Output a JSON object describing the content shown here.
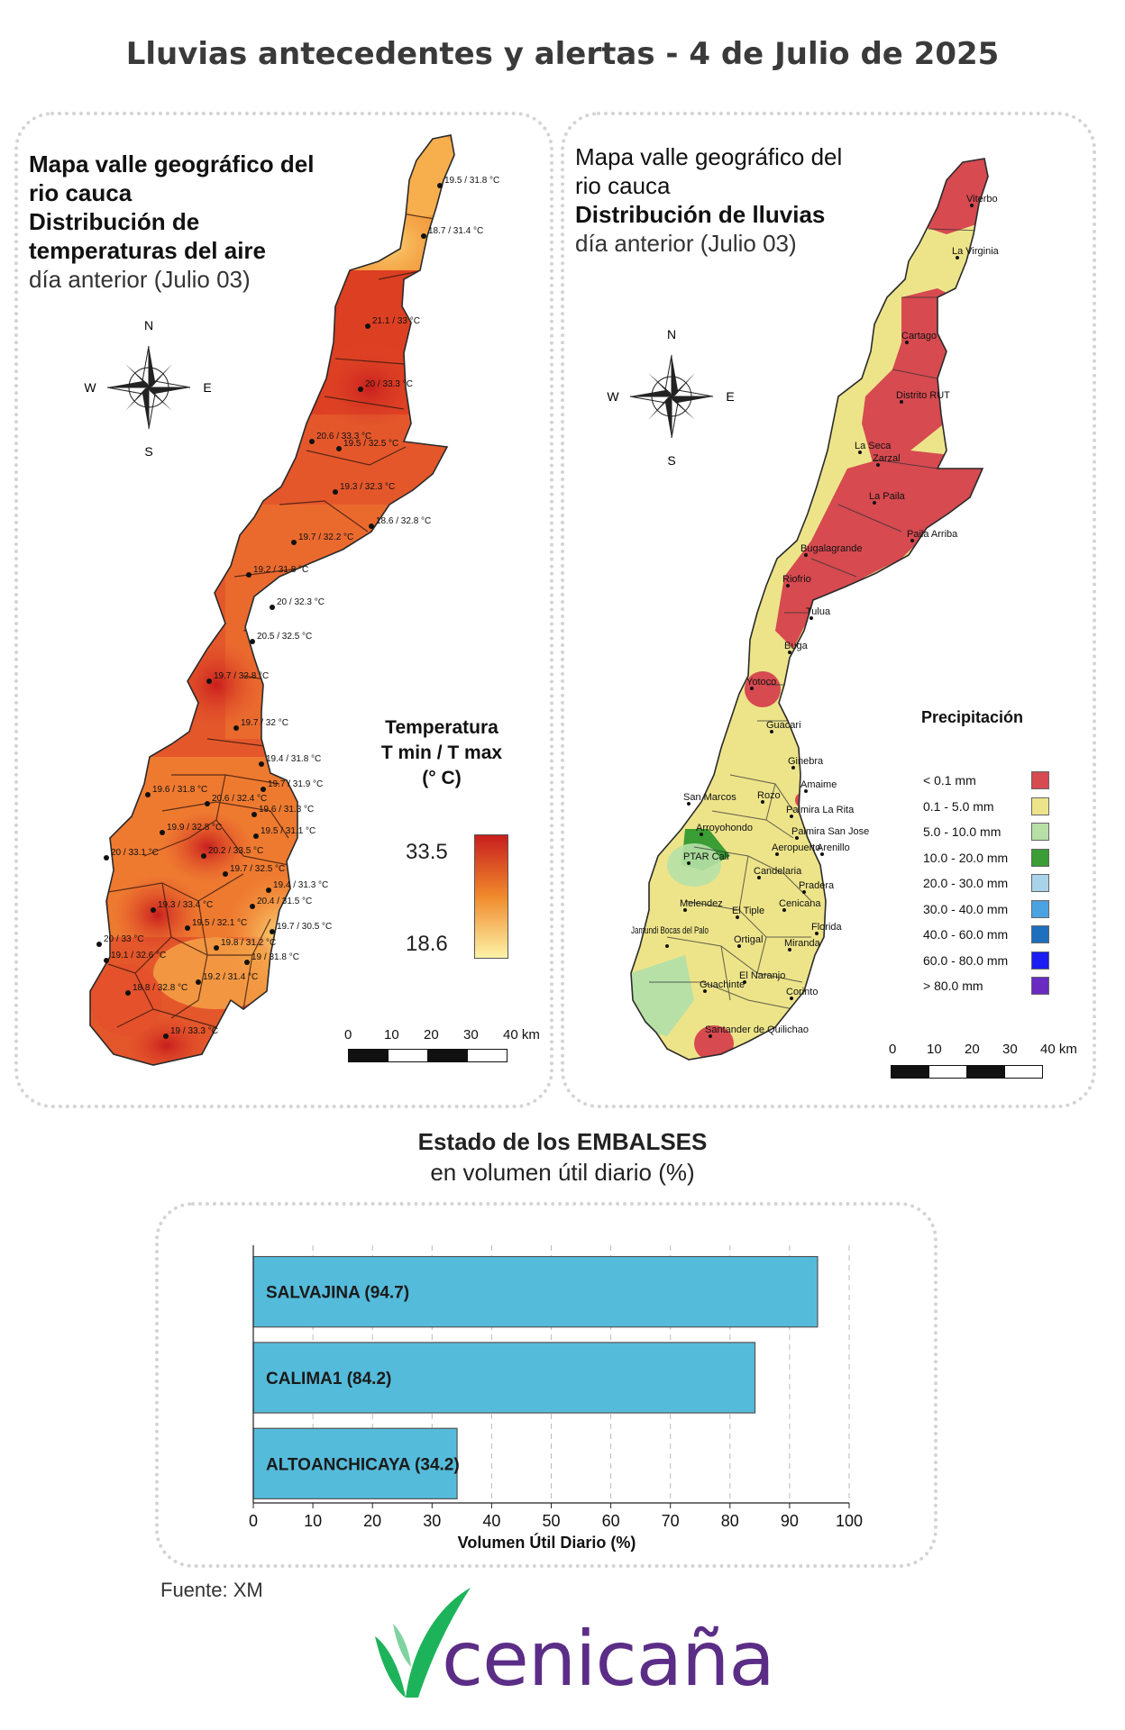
{
  "title": "Lluvias antecedentes y alertas - 4 de Julio de 2025",
  "temp_map": {
    "title_line1": "Mapa valle geográfico del",
    "title_line2": "rio cauca",
    "title_line3": "Distribución de",
    "title_line4": "temperaturas del aire",
    "subtitle": "día anterior (Julio 03)",
    "compass": {
      "n": "N",
      "s": "S",
      "e": "E",
      "w": "W"
    },
    "legend": {
      "title1": "Temperatura",
      "title2": "T min / T max",
      "title3": "(° C)",
      "max": "33.5",
      "min": "18.6",
      "colors": [
        "#c81e1e",
        "#f08a2c",
        "#fdf3a8"
      ]
    },
    "scale": {
      "labels": [
        "0",
        "10",
        "20",
        "30",
        "40 km"
      ]
    },
    "stations": [
      "19.5 / 31.8 °C",
      "18.7 / 31.4 °C",
      "21.1 / 33 °C",
      "20 / 33.3 °C",
      "20.6 / 33.3 °C",
      "19.5 / 32.5 °C",
      "19.3 / 32.3 °C",
      "18.6 / 32.8 °C",
      "19.7 / 32.2 °C",
      "19.2 / 31.8 °C",
      "20 / 32.3 °C",
      "20.5 / 32.5 °C",
      "19.7 / 32.8 °C",
      "19.7 / 32 °C",
      "19.4 / 31.8 °C",
      "19.6 / 31.8 °C",
      "19.7 / 31.9 °C",
      "20.6 / 32.4 °C",
      "19.6 / 31.3 °C",
      "19.9 / 32.8 °C",
      "19.5 / 31.1 °C",
      "20 / 33.1 °C",
      "20.2 / 33.5 °C",
      "19.7 / 32.5 °C",
      "19.4 / 31.3 °C",
      "19.3 / 33.4 °C",
      "20.4 / 31.5 °C",
      "19.5 / 32.1 °C",
      "19.7 / 30.5 °C",
      "20 / 33 °C",
      "19.1 / 32.6 °C",
      "19.8 / 31.2 °C",
      "19 / 31.8 °C",
      "19.2 / 31.4 °C",
      "18.8 / 32.8 °C",
      "19 / 33.3 °C"
    ]
  },
  "rain_map": {
    "title_line1": "Mapa valle geográfico del",
    "title_line2": "rio cauca",
    "title_line3": "Distribución de lluvias",
    "subtitle": "día anterior (Julio 03)",
    "compass": {
      "n": "N",
      "s": "S",
      "e": "E",
      "w": "W"
    },
    "legend": {
      "title": "Precipitación",
      "items": [
        {
          "label": "< 0.1 mm",
          "color": "#d64a50"
        },
        {
          "label": "0.1 - 5.0 mm",
          "color": "#ede48a"
        },
        {
          "label": "5.0 - 10.0 mm",
          "color": "#b6e0a6"
        },
        {
          "label": "10.0 - 20.0 mm",
          "color": "#3a9e35"
        },
        {
          "label": "20.0 - 30.0 mm",
          "color": "#a9d3e9"
        },
        {
          "label": "30.0 - 40.0 mm",
          "color": "#4aa3e0"
        },
        {
          "label": "40.0 - 60.0 mm",
          "color": "#1f6fbf"
        },
        {
          "label": "60.0 - 80.0 mm",
          "color": "#1a1ef0"
        },
        {
          "label": "> 80.0 mm",
          "color": "#6a2bc2"
        }
      ]
    },
    "scale": {
      "labels": [
        "0",
        "10",
        "20",
        "30",
        "40 km"
      ]
    },
    "places": [
      "Viterbo",
      "La Virginia",
      "Cartago",
      "Distrito RUT",
      "La Seca",
      "Zarzal",
      "La Paila",
      "Paila Arriba",
      "Bugalagrande",
      "Riofrio",
      "Tulua",
      "Buga",
      "Yotoco",
      "Guacari",
      "Ginebra",
      "Amaime",
      "San Marcos",
      "Rozo",
      "Palmira La Rita",
      "Arroyohondo",
      "Palmira San Jose",
      "PTAR Cali",
      "Aeropuerto",
      "Arenillo",
      "Candelaria",
      "Pradera",
      "Melendez",
      "Cenicana",
      "El Tiple",
      "Florida",
      "Jamundi Bocas del Palo",
      "Ortigal",
      "Miranda",
      "Guachinte",
      "El Naranjo",
      "Corinto",
      "Santander de Quilichao"
    ]
  },
  "reservoirs": {
    "title": "Estado de los EMBALSES",
    "subtitle": "en volumen útil diario (%)",
    "chart_data": {
      "type": "bar",
      "orientation": "horizontal",
      "categories": [
        "SALVAJINA",
        "CALIMA1",
        "ALTOANCHICAYA"
      ],
      "values": [
        94.7,
        84.2,
        34.2
      ],
      "bar_labels": [
        "SALVAJINA (94.7)",
        "CALIMA1 (84.2)",
        "ALTOANCHICAYA (34.2)"
      ],
      "xlabel": "Volumen Útil Diario (%)",
      "xlim": [
        0,
        100
      ],
      "xticks": [
        "0",
        "10",
        "20",
        "30",
        "40",
        "50",
        "60",
        "70",
        "80",
        "90",
        "100"
      ],
      "bar_color": "#55bbdb",
      "grid": "vertical dashed"
    }
  },
  "source": "Fuente: XM",
  "logo": {
    "text": "cenicaña",
    "text_color": "#5b2d86",
    "mark_color": "#1db35a"
  }
}
